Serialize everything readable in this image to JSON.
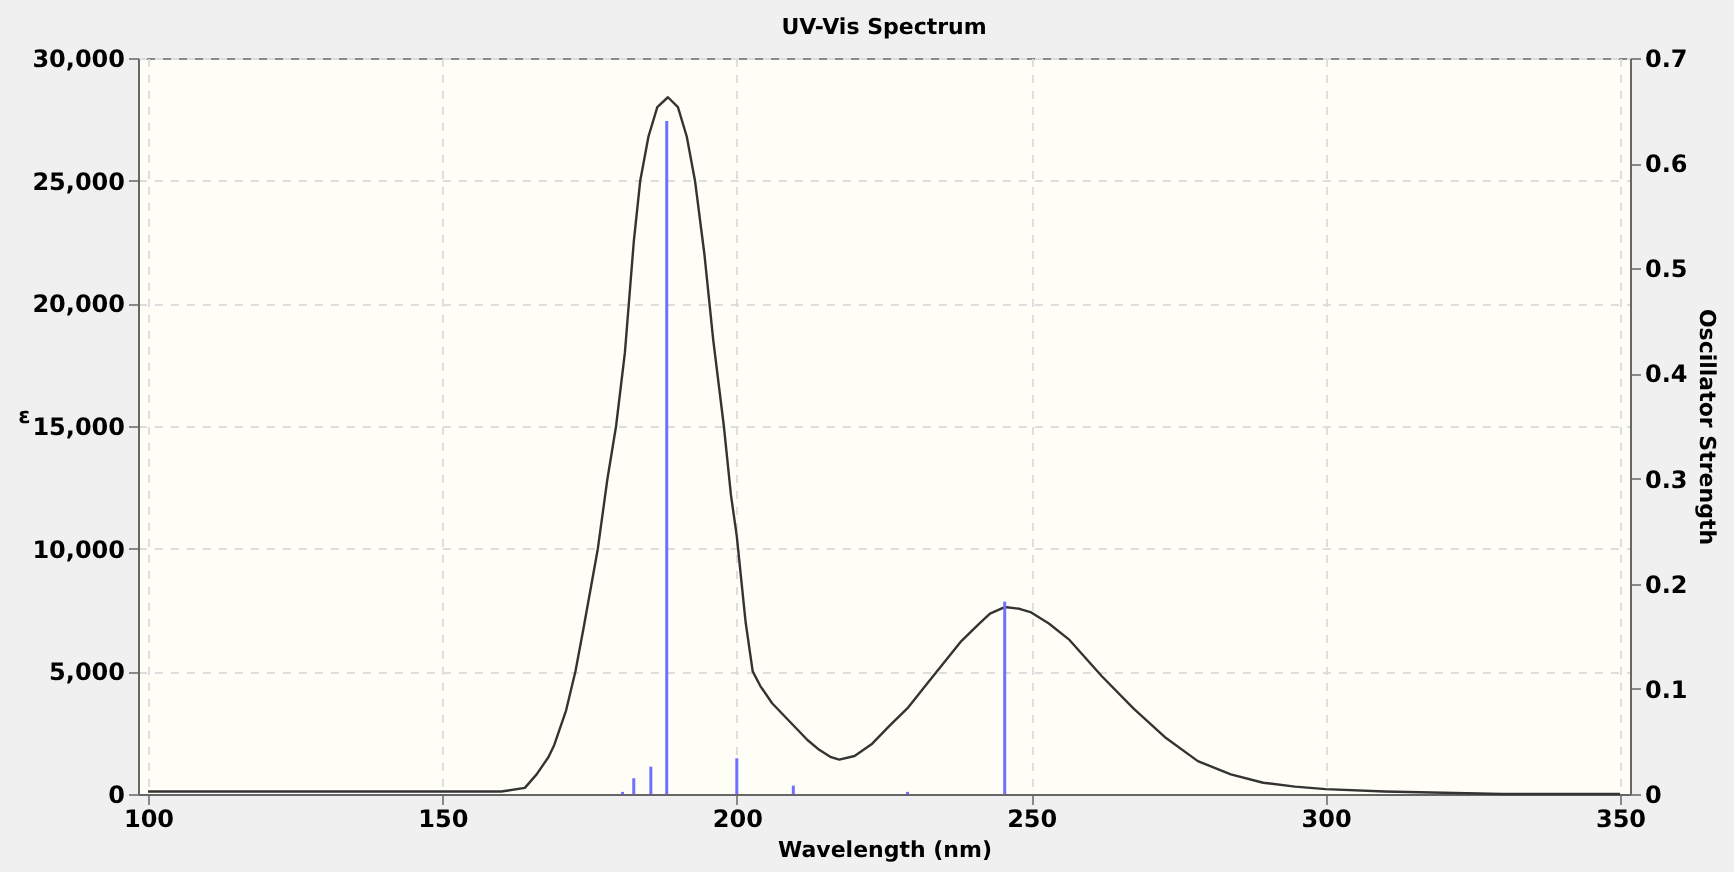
{
  "chart_data": {
    "type": "line",
    "title": "UV-Vis Spectrum",
    "xlabel": "Wavelength (nm)",
    "ylabel": "ε",
    "y2label": "Oscillator Strength",
    "xlim": [
      100,
      350
    ],
    "xticks": [
      100,
      150,
      200,
      250,
      300,
      350
    ],
    "ylim": [
      0,
      30000
    ],
    "yticks": [
      0,
      {
        "value": 5000,
        "label": "5,000"
      },
      {
        "value": 10000,
        "label": "10,000"
      },
      {
        "value": 15000,
        "label": "15,000"
      },
      {
        "value": 20000,
        "label": "20,000"
      },
      {
        "value": 25000,
        "label": "25,000"
      },
      {
        "value": 30000,
        "label": "30,000"
      }
    ],
    "y2lim": [
      0,
      0.7
    ],
    "y2ticks": [
      0,
      0.1,
      0.2,
      0.3,
      0.4,
      0.5,
      0.6,
      0.7
    ],
    "grid": true,
    "marker": "none",
    "line_style": "solid",
    "series": [
      {
        "color": "#333333",
        "x": [
          100,
          120,
          140,
          155,
          160,
          164,
          166,
          168,
          169,
          171,
          172.6,
          174,
          176.4,
          178,
          179.5,
          181,
          182.5,
          183.6,
          185,
          186.5,
          188.3,
          190,
          191.5,
          192.9,
          194.5,
          196,
          197.8,
          199,
          200,
          201.5,
          202.7,
          204,
          206,
          208,
          210,
          212,
          214,
          216,
          217.4,
          220,
          223,
          226,
          229,
          232,
          235,
          238,
          241,
          243,
          245.5,
          248,
          250,
          253,
          256.5,
          262,
          267.4,
          272.9,
          278.3,
          283.9,
          289.4,
          294.8,
          300,
          310,
          330,
          350
        ],
        "values": [
          100,
          100,
          100,
          100,
          100,
          250,
          800,
          1500,
          2000,
          3400,
          5000,
          6800,
          10000,
          12800,
          15000,
          18000,
          22500,
          25000,
          26800,
          28000,
          28400,
          28000,
          26800,
          25000,
          22000,
          18500,
          15000,
          12200,
          10500,
          7000,
          5000,
          4400,
          3700,
          3200,
          2700,
          2200,
          1800,
          1500,
          1400,
          1550,
          2050,
          2800,
          3500,
          4400,
          5300,
          6200,
          6900,
          7350,
          7620,
          7550,
          7400,
          6950,
          6280,
          4800,
          3480,
          2280,
          1340,
          800,
          460,
          300,
          200,
          100,
          0,
          0
        ]
      },
      {
        "type": "bar",
        "axis": "y2",
        "color": "#7070ff",
        "x": [
          180.6,
          182.5,
          185.4,
          188.1,
          200,
          209.6,
          229,
          245.5
        ],
        "values": [
          0.002,
          0.015,
          0.026,
          0.64,
          0.034,
          0.008,
          0.002,
          0.183
        ]
      }
    ]
  }
}
